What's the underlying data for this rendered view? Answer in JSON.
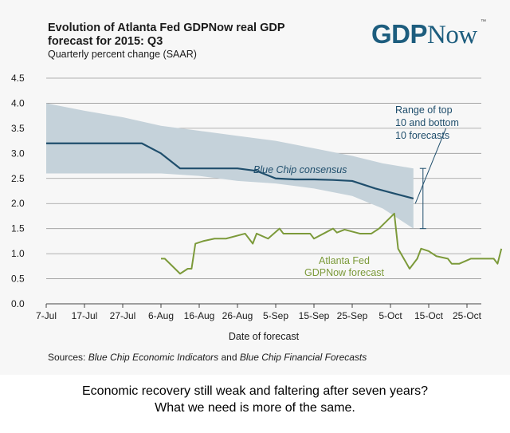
{
  "caption": {
    "line1": "Economic recovery still weak and faltering after seven years?",
    "line2": "What we need is more of the same."
  },
  "logo": {
    "part1": "GDP",
    "part2": "Now",
    "tm": "™"
  },
  "sources": {
    "prefix": "Sources:",
    "src1": "Blue Chip Economic Indicators",
    "and": "and",
    "src2": "Blue Chip Financial Forecasts"
  },
  "colors": {
    "band": "#c5d2da",
    "consensus": "#1f4e6c",
    "gdpnow": "#7c9a3a",
    "annotation": "#1f4e6c",
    "grid": "#9a9a9a"
  },
  "chart_data": {
    "type": "line",
    "title": "Evolution of Atlanta Fed GDPNow real GDP forecast for 2015: Q3",
    "subtitle": "Quarterly percent change (SAAR)",
    "xlabel": "Date of forecast",
    "ylabel": "",
    "ylim": [
      0,
      4.5
    ],
    "yticks": [
      "0.0",
      "0.5",
      "1.0",
      "1.5",
      "2.0",
      "2.5",
      "3.0",
      "3.5",
      "4.0",
      "4.5"
    ],
    "xticks": [
      "7-Jul",
      "17-Jul",
      "27-Jul",
      "6-Aug",
      "16-Aug",
      "26-Aug",
      "5-Sep",
      "15-Sep",
      "25-Sep",
      "5-Oct",
      "15-Oct",
      "25-Oct"
    ],
    "x_range_days": [
      0,
      112
    ],
    "grid": true,
    "band": {
      "name": "Range of top 10 and bottom 10 forecasts",
      "top": [
        [
          0,
          4.0
        ],
        [
          10,
          3.85
        ],
        [
          20,
          3.72
        ],
        [
          30,
          3.55
        ],
        [
          40,
          3.45
        ],
        [
          50,
          3.35
        ],
        [
          60,
          3.25
        ],
        [
          70,
          3.1
        ],
        [
          80,
          2.95
        ],
        [
          88,
          2.8
        ],
        [
          96,
          2.7
        ]
      ],
      "bottom": [
        [
          0,
          2.6
        ],
        [
          10,
          2.6
        ],
        [
          20,
          2.6
        ],
        [
          30,
          2.6
        ],
        [
          40,
          2.55
        ],
        [
          50,
          2.45
        ],
        [
          60,
          2.4
        ],
        [
          70,
          2.3
        ],
        [
          80,
          2.15
        ],
        [
          88,
          1.9
        ],
        [
          96,
          1.5
        ]
      ]
    },
    "series": [
      {
        "name": "Blue Chip consensus",
        "points": [
          [
            0,
            3.2
          ],
          [
            25,
            3.2
          ],
          [
            30,
            3.0
          ],
          [
            35,
            2.7
          ],
          [
            50,
            2.7
          ],
          [
            55,
            2.65
          ],
          [
            60,
            2.5
          ],
          [
            65,
            2.48
          ],
          [
            70,
            2.48
          ],
          [
            75,
            2.47
          ],
          [
            80,
            2.45
          ],
          [
            86,
            2.3
          ],
          [
            91,
            2.2
          ],
          [
            96,
            2.1
          ]
        ]
      },
      {
        "name": "Atlanta Fed GDPNow forecast",
        "points": [
          [
            30,
            0.9
          ],
          [
            31,
            0.9
          ],
          [
            35,
            0.6
          ],
          [
            37,
            0.7
          ],
          [
            38,
            0.7
          ],
          [
            39,
            1.2
          ],
          [
            41,
            1.25
          ],
          [
            44,
            1.3
          ],
          [
            47,
            1.3
          ],
          [
            52,
            1.4
          ],
          [
            54,
            1.2
          ],
          [
            55,
            1.4
          ],
          [
            58,
            1.3
          ],
          [
            61,
            1.5
          ],
          [
            62,
            1.4
          ],
          [
            65,
            1.4
          ],
          [
            69,
            1.4
          ],
          [
            70,
            1.3
          ],
          [
            73,
            1.42
          ],
          [
            75,
            1.5
          ],
          [
            76,
            1.42
          ],
          [
            78,
            1.48
          ],
          [
            82,
            1.4
          ],
          [
            85,
            1.4
          ],
          [
            87,
            1.5
          ],
          [
            91,
            1.8
          ],
          [
            92,
            1.1
          ],
          [
            95,
            0.7
          ],
          [
            97,
            0.9
          ],
          [
            98,
            1.1
          ],
          [
            100,
            1.05
          ],
          [
            102,
            0.95
          ],
          [
            105,
            0.9
          ],
          [
            106,
            0.8
          ],
          [
            108,
            0.8
          ],
          [
            111,
            0.9
          ],
          [
            117,
            0.9
          ],
          [
            118,
            0.8
          ],
          [
            119,
            1.1
          ]
        ]
      }
    ],
    "annotations": {
      "range_label": [
        "Range of top",
        "10 and bottom",
        "10 forecasts"
      ],
      "consensus_label": "Blue Chip consensus",
      "gdpnow_label": [
        "Atlanta Fed",
        "GDPNow forecast"
      ]
    }
  }
}
